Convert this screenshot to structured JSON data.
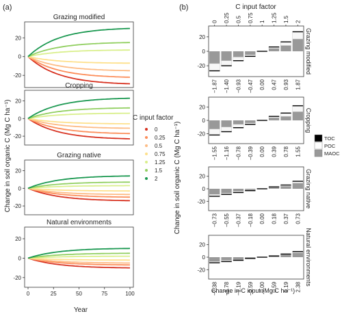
{
  "panel_a": {
    "label": "(a)",
    "ylabel": "Change in soil organic C (Mg C ha⁻¹)",
    "xlabel": "Year"
  },
  "panel_b": {
    "label": "(b)",
    "top_title": "C input factor",
    "xlabel": "Change in C input (Mg C  ha⁻¹)",
    "legend": [
      "TOC",
      "POC",
      "MAOC"
    ],
    "legend_colors": [
      "#000000",
      "#ffffff",
      "#999999"
    ],
    "factor_ticks": [
      "0",
      "0.25",
      "0.5",
      "0.75",
      "1",
      "1.25",
      "1.5",
      "2"
    ]
  },
  "legend_a": {
    "title": "C input factor",
    "items": [
      "0",
      "0.25",
      "0.5",
      "0.75",
      "1.25",
      "1.5",
      "2"
    ]
  },
  "colors": {
    "factor_colors": [
      "#d7301f",
      "#fc8d59",
      "#fdbb84",
      "#fee08b",
      "#d9ef8b",
      "#91cf60",
      "#1a9850"
    ]
  },
  "chart_data": [
    {
      "type": "line",
      "title": "Grazing modified",
      "x": [
        0,
        100
      ],
      "xticks": [
        "0",
        "25",
        "50",
        "75",
        "100"
      ],
      "ylim": [
        -33,
        37
      ],
      "yticks": [
        "20",
        "0",
        "-20"
      ],
      "series": [
        {
          "name": "0",
          "values_at_year_100": -29
        },
        {
          "name": "0.25",
          "values_at_year_100": -22
        },
        {
          "name": "0.5",
          "values_at_year_100": -15
        },
        {
          "name": "0.75",
          "values_at_year_100": -7
        },
        {
          "name": "1.25",
          "values_at_year_100": 7
        },
        {
          "name": "1.5",
          "values_at_year_100": 15
        },
        {
          "name": "2",
          "values_at_year_100": 30
        }
      ]
    },
    {
      "type": "line",
      "title": "Cropping",
      "x": [
        0,
        100
      ],
      "xticks": [
        "0",
        "25",
        "50",
        "75",
        "100"
      ],
      "ylim": [
        -30,
        32
      ],
      "yticks": [
        "20",
        "0",
        "-20"
      ],
      "series": [
        {
          "name": "0",
          "values_at_year_100": -23
        },
        {
          "name": "0.25",
          "values_at_year_100": -17
        },
        {
          "name": "0.5",
          "values_at_year_100": -11
        },
        {
          "name": "0.75",
          "values_at_year_100": -6
        },
        {
          "name": "1.25",
          "values_at_year_100": 6
        },
        {
          "name": "1.5",
          "values_at_year_100": 12
        },
        {
          "name": "2",
          "values_at_year_100": 23
        }
      ]
    },
    {
      "type": "line",
      "title": "Grazing native",
      "x": [
        0,
        100
      ],
      "xticks": [
        "0",
        "25",
        "50",
        "75",
        "100"
      ],
      "ylim": [
        -30,
        32
      ],
      "yticks": [
        "20",
        "0",
        "-20"
      ],
      "series": [
        {
          "name": "0",
          "values_at_year_100": -14
        },
        {
          "name": "0.25",
          "values_at_year_100": -10
        },
        {
          "name": "0.5",
          "values_at_year_100": -7
        },
        {
          "name": "0.75",
          "values_at_year_100": -3
        },
        {
          "name": "1.25",
          "values_at_year_100": 3
        },
        {
          "name": "1.5",
          "values_at_year_100": 7
        },
        {
          "name": "2",
          "values_at_year_100": 14
        }
      ]
    },
    {
      "type": "line",
      "title": "Natural environments",
      "x": [
        0,
        100
      ],
      "xticks": [
        "0",
        "25",
        "50",
        "75",
        "100"
      ],
      "ylim": [
        -30,
        32
      ],
      "yticks": [
        "20",
        "0",
        "-20"
      ],
      "series": [
        {
          "name": "0",
          "values_at_year_100": -10
        },
        {
          "name": "0.25",
          "values_at_year_100": -7
        },
        {
          "name": "0.5",
          "values_at_year_100": -5
        },
        {
          "name": "0.75",
          "values_at_year_100": -2
        },
        {
          "name": "1.25",
          "values_at_year_100": 2
        },
        {
          "name": "1.5",
          "values_at_year_100": 5
        },
        {
          "name": "2",
          "values_at_year_100": 10
        }
      ]
    },
    {
      "type": "bar",
      "title": "Grazing modified",
      "categories": [
        "−1.87",
        "−1.40",
        "−0.93",
        "−0.47",
        "0.00",
        "0.47",
        "0.93",
        "1.87"
      ],
      "ylim": [
        -35,
        35
      ],
      "yticks": [
        "20",
        "0",
        "-20"
      ],
      "series": [
        {
          "name": "TOC",
          "values": [
            -27,
            -20,
            -13,
            -7,
            0,
            6,
            13,
            27
          ]
        },
        {
          "name": "POC",
          "values": [
            -10,
            -7,
            -5,
            -2,
            0,
            2,
            5,
            10
          ]
        },
        {
          "name": "MAOC",
          "values": [
            -17,
            -13,
            -8,
            -5,
            0,
            4,
            8,
            17
          ]
        }
      ]
    },
    {
      "type": "bar",
      "title": "Cropping",
      "categories": [
        "−1.55",
        "−1.16",
        "−0.78",
        "−0.39",
        "0.00",
        "0.39",
        "0.78",
        "1.55"
      ],
      "ylim": [
        -35,
        35
      ],
      "yticks": [
        "20",
        "0",
        "-20"
      ],
      "series": [
        {
          "name": "TOC",
          "values": [
            -22,
            -17,
            -11,
            -6,
            0,
            6,
            11,
            22
          ]
        },
        {
          "name": "POC",
          "values": [
            -9,
            -7,
            -5,
            -2,
            0,
            2,
            5,
            9
          ]
        },
        {
          "name": "MAOC",
          "values": [
            -13,
            -10,
            -6,
            -4,
            0,
            4,
            6,
            13
          ]
        }
      ]
    },
    {
      "type": "bar",
      "title": "Grazing native",
      "categories": [
        "−0.73",
        "−0.55",
        "−0.37",
        "−0.18",
        "0.00",
        "0.18",
        "0.37",
        "0.73"
      ],
      "ylim": [
        -35,
        35
      ],
      "yticks": [
        "20",
        "0",
        "-20"
      ],
      "series": [
        {
          "name": "TOC",
          "values": [
            -12,
            -9,
            -6,
            -3,
            0,
            3,
            6,
            12
          ]
        },
        {
          "name": "POC",
          "values": [
            -3,
            -2,
            -2,
            -1,
            0,
            1,
            2,
            3
          ]
        },
        {
          "name": "MAOC",
          "values": [
            -9,
            -7,
            -4,
            -2,
            0,
            2,
            4,
            9
          ]
        }
      ]
    },
    {
      "type": "bar",
      "title": "Natural environments",
      "categories": [
        "−2.38",
        "−1.78",
        "−1.19",
        "−0.59",
        "0.00",
        "0.59",
        "1.19",
        "2.38"
      ],
      "ylim": [
        -35,
        35
      ],
      "yticks": [
        "20",
        "0",
        "-20"
      ],
      "series": [
        {
          "name": "TOC",
          "values": [
            -9,
            -7,
            -5,
            -2,
            0,
            2,
            5,
            9
          ]
        },
        {
          "name": "POC",
          "values": [
            -2,
            -2,
            -1,
            -1,
            0,
            1,
            1,
            2
          ]
        },
        {
          "name": "MAOC",
          "values": [
            -7,
            -5,
            -4,
            -1,
            0,
            1,
            4,
            7
          ]
        }
      ]
    }
  ]
}
